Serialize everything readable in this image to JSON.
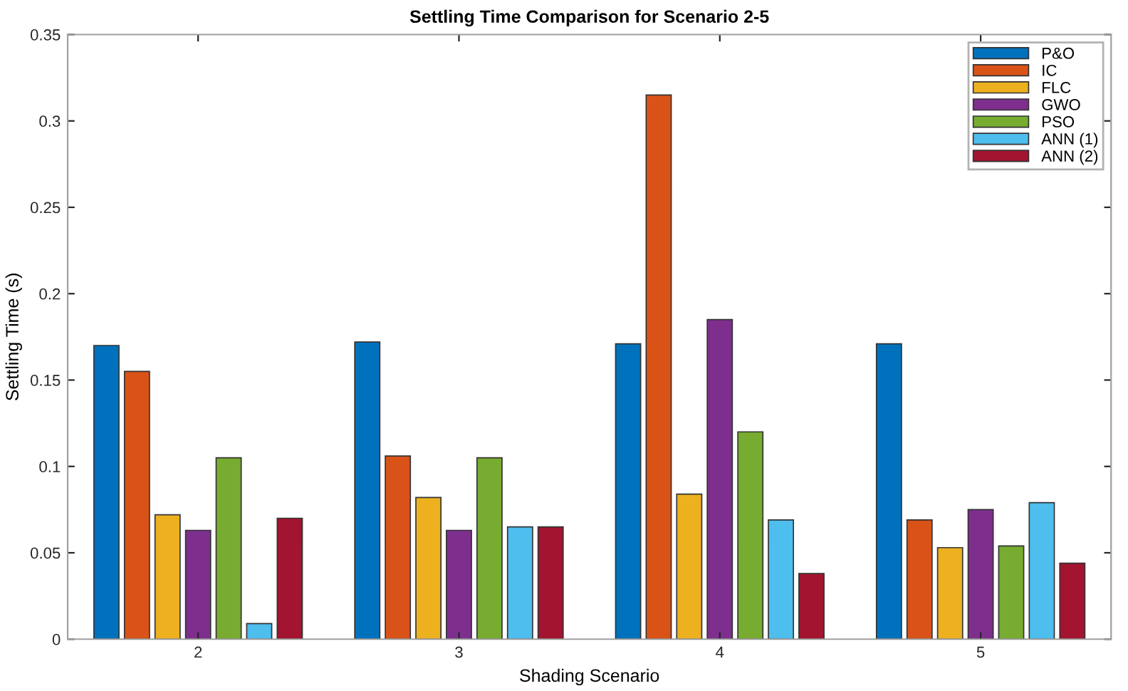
{
  "chart_data": {
    "type": "bar",
    "title": "Settling Time Comparison for Scenario 2-5",
    "xlabel": "Shading Scenario",
    "ylabel": "Settling Time (s)",
    "categories": [
      "2",
      "3",
      "4",
      "5"
    ],
    "series": [
      {
        "name": "P&O",
        "color": "#0072bd",
        "values": [
          0.17,
          0.172,
          0.171,
          0.171
        ]
      },
      {
        "name": "IC",
        "color": "#d95319",
        "values": [
          0.155,
          0.106,
          0.315,
          0.069
        ]
      },
      {
        "name": "FLC",
        "color": "#edb120",
        "values": [
          0.072,
          0.082,
          0.084,
          0.053
        ]
      },
      {
        "name": "GWO",
        "color": "#7e2f8e",
        "values": [
          0.063,
          0.063,
          0.185,
          0.075
        ]
      },
      {
        "name": "PSO",
        "color": "#77ac30",
        "values": [
          0.105,
          0.105,
          0.12,
          0.054
        ]
      },
      {
        "name": "ANN (1)",
        "color": "#4dbeee",
        "values": [
          0.009,
          0.065,
          0.069,
          0.079
        ]
      },
      {
        "name": "ANN (2)",
        "color": "#a2142f",
        "values": [
          0.07,
          0.065,
          0.038,
          0.044
        ]
      }
    ],
    "ylim": [
      0,
      0.35
    ],
    "yticks": [
      0,
      0.05,
      0.1,
      0.15,
      0.2,
      0.25,
      0.3,
      0.35
    ],
    "grid": false,
    "legend": "top right"
  }
}
